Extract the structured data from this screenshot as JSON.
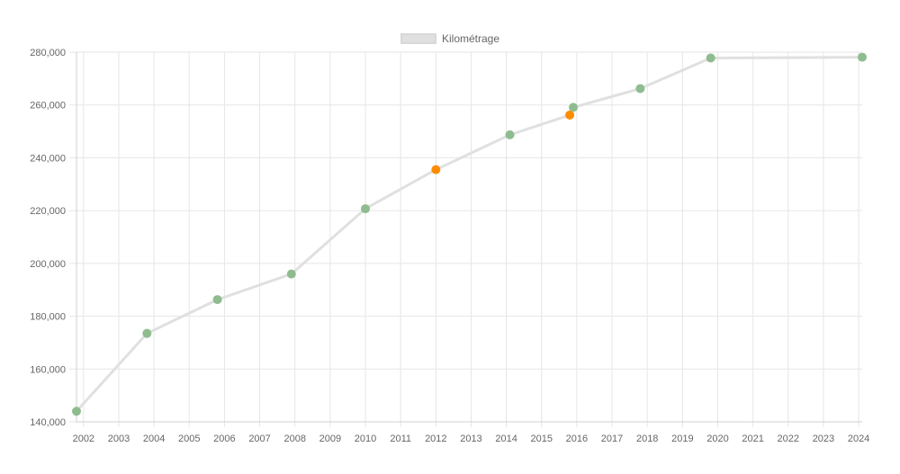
{
  "chart_data": {
    "type": "line",
    "title": "",
    "xlabel": "",
    "ylabel": "",
    "x_ticks": [
      "2002",
      "2003",
      "2004",
      "2005",
      "2006",
      "2007",
      "2008",
      "2009",
      "2010",
      "2011",
      "2012",
      "2013",
      "2014",
      "2015",
      "2016",
      "2017",
      "2018",
      "2019",
      "2020",
      "2021",
      "2022",
      "2023",
      "2024"
    ],
    "y_ticks": [
      "140,000",
      "160,000",
      "180,000",
      "200,000",
      "220,000",
      "240,000",
      "260,000",
      "280,000"
    ],
    "ylim": [
      140000,
      280000
    ],
    "xlim": [
      2001.8,
      2024.1
    ],
    "grid": true,
    "legend_position": "top-center",
    "series": [
      {
        "name": "Kilométrage",
        "line_color": "#e0e0e0",
        "points": [
          {
            "x": 2001.8,
            "y": 144000,
            "color": "#8fbc8f"
          },
          {
            "x": 2003.8,
            "y": 173500,
            "color": "#8fbc8f"
          },
          {
            "x": 2005.8,
            "y": 186300,
            "color": "#8fbc8f"
          },
          {
            "x": 2007.9,
            "y": 196000,
            "color": "#8fbc8f"
          },
          {
            "x": 2010.0,
            "y": 220700,
            "color": "#8fbc8f"
          },
          {
            "x": 2012.0,
            "y": 235500,
            "color": "#ff8c00"
          },
          {
            "x": 2014.1,
            "y": 248700,
            "color": "#8fbc8f"
          },
          {
            "x": 2015.8,
            "y": 256200,
            "color": "#ff8c00"
          },
          {
            "x": 2015.9,
            "y": 259100,
            "color": "#8fbc8f"
          },
          {
            "x": 2017.8,
            "y": 266200,
            "color": "#8fbc8f"
          },
          {
            "x": 2019.8,
            "y": 277800,
            "color": "#8fbc8f"
          },
          {
            "x": 2024.1,
            "y": 278100,
            "color": "#8fbc8f"
          }
        ]
      }
    ]
  },
  "legend": {
    "label": "Kilométrage"
  }
}
